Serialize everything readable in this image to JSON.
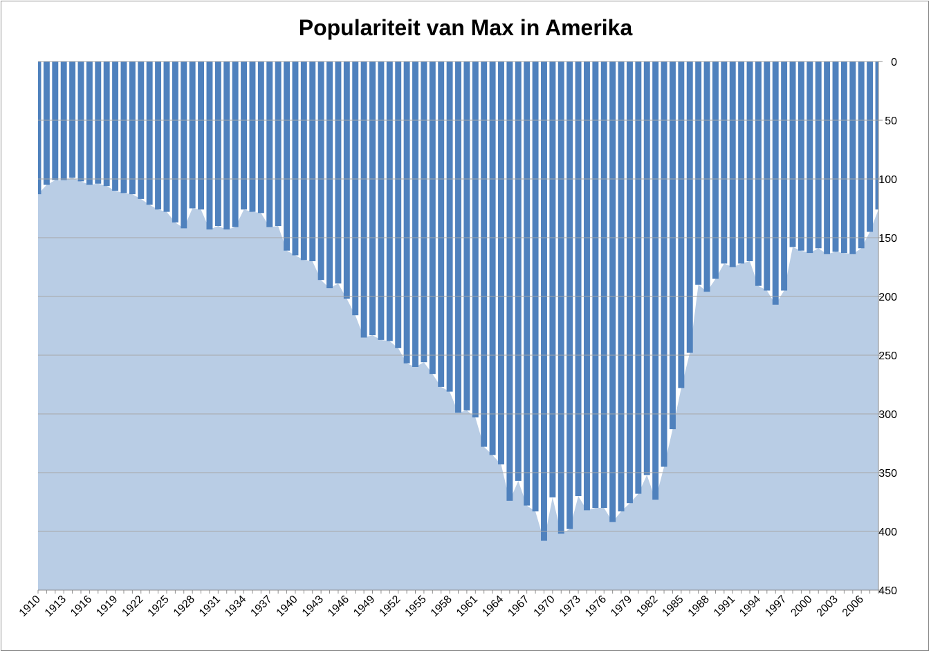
{
  "chart_data": {
    "type": "area",
    "title": "Populariteit van Max in Amerika",
    "xlabel": "",
    "ylabel": "",
    "y_inverted": true,
    "ylim": [
      0,
      450
    ],
    "yticks": [
      0,
      50,
      100,
      150,
      200,
      250,
      300,
      350,
      400,
      450
    ],
    "grid": true,
    "colors": {
      "bars": "#4f81bd",
      "area": "#b9cde5",
      "grid": "#a6a6a6"
    },
    "x": [
      1910,
      1911,
      1912,
      1913,
      1914,
      1915,
      1916,
      1917,
      1918,
      1919,
      1920,
      1921,
      1922,
      1923,
      1924,
      1925,
      1926,
      1927,
      1928,
      1929,
      1930,
      1931,
      1932,
      1933,
      1934,
      1935,
      1936,
      1937,
      1938,
      1939,
      1940,
      1941,
      1942,
      1943,
      1944,
      1945,
      1946,
      1947,
      1948,
      1949,
      1950,
      1951,
      1952,
      1953,
      1954,
      1955,
      1956,
      1957,
      1958,
      1959,
      1960,
      1961,
      1962,
      1963,
      1964,
      1965,
      1966,
      1967,
      1968,
      1969,
      1970,
      1971,
      1972,
      1973,
      1974,
      1975,
      1976,
      1977,
      1978,
      1979,
      1980,
      1981,
      1982,
      1983,
      1984,
      1985,
      1986,
      1987,
      1988,
      1989,
      1990,
      1991,
      1992,
      1993,
      1994,
      1995,
      1996,
      1997,
      1998,
      1999,
      2000,
      2001,
      2002,
      2003,
      2004,
      2005,
      2006,
      2007,
      2008
    ],
    "xtick_labels": [
      "1910",
      "1913",
      "1916",
      "1919",
      "1922",
      "1925",
      "1928",
      "1931",
      "1934",
      "1937",
      "1940",
      "1943",
      "1946",
      "1949",
      "1952",
      "1955",
      "1958",
      "1961",
      "1964",
      "1967",
      "1970",
      "1973",
      "1976",
      "1979",
      "1982",
      "1985",
      "1988",
      "1991",
      "1994",
      "1997",
      "2000",
      "2003",
      "2006"
    ],
    "series": [
      {
        "values": [
          113,
          105,
          101,
          101,
          99,
          102,
          105,
          104,
          106,
          110,
          112,
          113,
          117,
          122,
          126,
          128,
          137,
          142,
          125,
          126,
          143,
          140,
          143,
          141,
          126,
          128,
          129,
          141,
          140,
          161,
          165,
          169,
          170,
          186,
          193,
          189,
          202,
          216,
          235,
          233,
          237,
          238,
          244,
          257,
          260,
          256,
          266,
          277,
          281,
          299,
          297,
          303,
          328,
          335,
          343,
          374,
          357,
          378,
          383,
          408,
          371,
          402,
          398,
          370,
          382,
          380,
          380,
          392,
          383,
          376,
          368,
          352,
          373,
          345,
          313,
          278,
          248,
          190,
          196,
          185,
          172,
          175,
          172,
          170,
          191,
          195,
          207,
          195,
          158,
          161,
          163,
          159,
          164,
          162,
          163,
          164,
          159,
          145,
          126
        ]
      }
    ]
  }
}
